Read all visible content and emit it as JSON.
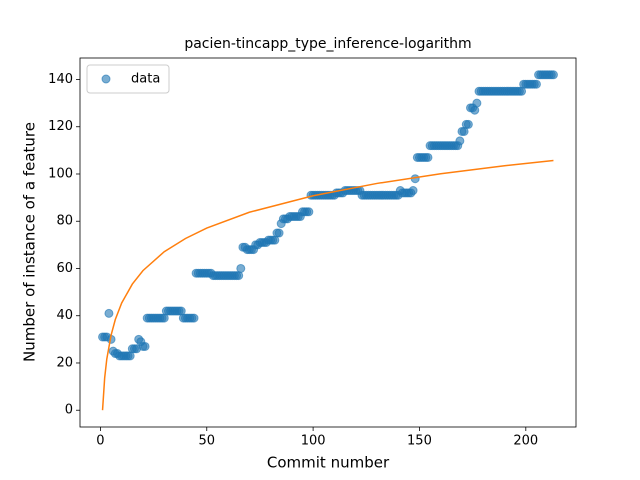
{
  "chart_data": {
    "type": "scatter",
    "title": "pacien-tincapp_type_inference-logarithm",
    "xlabel": "Commit number",
    "ylabel": "Number of instance of a feature",
    "xlim": [
      -9.6,
      223.6
    ],
    "xticks": [
      0,
      50,
      100,
      150,
      200
    ],
    "ylim": [
      -7.1,
      149.1
    ],
    "yticks": [
      0,
      20,
      40,
      60,
      80,
      100,
      120,
      140
    ],
    "legend": "upper left",
    "series": [
      {
        "name": "data",
        "type": "scatter",
        "color": "#1f77b4",
        "x": [
          1,
          2,
          3,
          4,
          5,
          6,
          7,
          8,
          9,
          10,
          11,
          12,
          13,
          14,
          15,
          16,
          17,
          18,
          19,
          20,
          21,
          22,
          23,
          24,
          25,
          26,
          27,
          28,
          29,
          30,
          31,
          32,
          33,
          34,
          35,
          36,
          37,
          38,
          39,
          40,
          41,
          42,
          43,
          44,
          45,
          46,
          47,
          48,
          49,
          50,
          51,
          52,
          53,
          54,
          55,
          56,
          57,
          58,
          59,
          60,
          61,
          62,
          63,
          64,
          65,
          66,
          67,
          68,
          69,
          70,
          71,
          72,
          73,
          74,
          75,
          76,
          77,
          78,
          79,
          80,
          81,
          82,
          83,
          84,
          85,
          86,
          87,
          88,
          89,
          90,
          91,
          92,
          93,
          94,
          95,
          96,
          97,
          98,
          99,
          100,
          101,
          102,
          103,
          104,
          105,
          106,
          107,
          108,
          109,
          110,
          111,
          112,
          113,
          114,
          115,
          116,
          117,
          118,
          119,
          120,
          121,
          122,
          123,
          124,
          125,
          126,
          127,
          128,
          129,
          130,
          131,
          132,
          133,
          134,
          135,
          136,
          137,
          138,
          139,
          140,
          141,
          142,
          143,
          144,
          145,
          146,
          147,
          148,
          149,
          150,
          151,
          152,
          153,
          154,
          155,
          156,
          157,
          158,
          159,
          160,
          161,
          162,
          163,
          164,
          165,
          166,
          167,
          168,
          169,
          170,
          171,
          172,
          173,
          174,
          175,
          176,
          177,
          178,
          179,
          180,
          181,
          182,
          183,
          184,
          185,
          186,
          187,
          188,
          189,
          190,
          191,
          192,
          193,
          194,
          195,
          196,
          197,
          198,
          199,
          200,
          201,
          202,
          203,
          204,
          205,
          206,
          207,
          208,
          209,
          210,
          211,
          212,
          213
        ],
        "values": [
          31,
          31,
          31,
          41,
          30,
          25,
          24,
          24,
          23,
          23,
          23,
          23,
          23,
          23,
          26,
          26,
          26,
          30,
          29,
          27,
          27,
          39,
          39,
          39,
          39,
          39,
          39,
          39,
          39,
          39,
          42,
          42,
          42,
          42,
          42,
          42,
          42,
          42,
          39,
          39,
          39,
          39,
          39,
          39,
          58,
          58,
          58,
          58,
          58,
          58,
          58,
          58,
          57,
          57,
          57,
          57,
          57,
          57,
          57,
          57,
          57,
          57,
          57,
          57,
          57,
          60,
          69,
          69,
          68,
          68,
          68,
          68,
          70,
          70,
          71,
          71,
          71,
          71,
          72,
          72,
          72,
          72,
          75,
          75,
          79,
          81,
          81,
          81,
          82,
          82,
          82,
          82,
          82,
          82,
          84,
          84,
          84,
          84,
          91,
          91,
          91,
          91,
          91,
          91,
          91,
          91,
          91,
          91,
          91,
          91,
          92,
          92,
          92,
          92,
          93,
          93,
          93,
          93,
          93,
          93,
          93,
          93,
          91,
          91,
          91,
          91,
          91,
          91,
          91,
          91,
          91,
          91,
          91,
          91,
          91,
          91,
          91,
          91,
          91,
          91,
          93,
          92,
          92,
          92,
          92,
          92,
          93,
          98,
          107,
          107,
          107,
          107,
          107,
          107,
          112,
          112,
          112,
          112,
          112,
          112,
          112,
          112,
          112,
          112,
          112,
          112,
          112,
          112,
          114,
          118,
          118,
          121,
          121,
          128,
          128,
          127,
          130,
          135,
          135,
          135,
          135,
          135,
          135,
          135,
          135,
          135,
          135,
          135,
          135,
          135,
          135,
          135,
          135,
          135,
          135,
          135,
          135,
          135,
          138,
          138,
          138,
          138,
          138,
          138,
          138,
          142,
          142,
          142,
          142,
          142,
          142,
          142,
          142
        ]
      },
      {
        "type": "line",
        "color": "#ff7f0e",
        "x": [
          1,
          2,
          3,
          5,
          7,
          10,
          15,
          20,
          30,
          40,
          50,
          70,
          100,
          130,
          160,
          190,
          213
        ],
        "values": [
          0,
          13.7,
          21.7,
          31.7,
          38.4,
          45.4,
          53.4,
          59.1,
          67.1,
          72.7,
          77.1,
          83.8,
          90.8,
          96.0,
          100.1,
          103.5,
          105.7
        ]
      }
    ]
  }
}
